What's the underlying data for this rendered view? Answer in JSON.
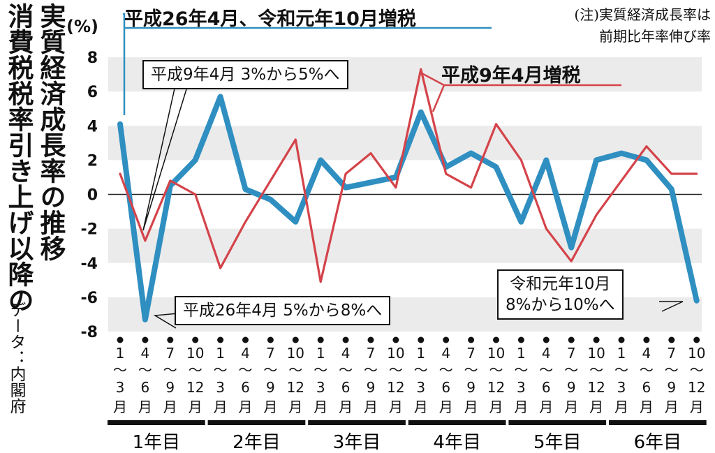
{
  "title_col1": "消費税税率引き上げ以降の",
  "title_col2": "実質経済成長率の推移",
  "source": "データ：内閣府",
  "unit": "(%)",
  "note_line1": "(注)実質経済成長率は",
  "note_line2": "前期比年率伸び率",
  "annotations": {
    "blue_header": "平成26年4月、令和元年10月増税",
    "h9_box": "平成9年4月 3%から5%へ",
    "red_label": "平成9年4月増税",
    "h26_box": "平成26年4月 5%から8%へ",
    "r1_box_line1": "令和元年10月",
    "r1_box_line2": "8%から10%へ"
  },
  "chart_data": {
    "type": "line",
    "ylim": [
      -8,
      8
    ],
    "yticks": [
      "8",
      "6",
      "4",
      "2",
      "0",
      "-2",
      "-4",
      "-6",
      "-8"
    ],
    "quarter_labels": [
      [
        "1",
        "〜",
        "3",
        "月"
      ],
      [
        "4",
        "〜",
        "6",
        "月"
      ],
      [
        "7",
        "〜",
        "9",
        "月"
      ],
      [
        "10",
        "〜",
        "12",
        "月"
      ]
    ],
    "years": [
      "1年目",
      "2年目",
      "3年目",
      "4年目",
      "5年目",
      "6年目"
    ],
    "series": [
      {
        "color": "#2f8fc1",
        "values": [
          4.1,
          -7.3,
          0.5,
          2.0,
          5.7,
          0.3,
          -0.3,
          -1.6,
          2.0,
          0.4,
          0.7,
          1.0,
          4.8,
          1.6,
          2.4,
          1.6,
          -1.6,
          2.0,
          -3.1,
          2.0,
          2.4,
          2.0,
          0.3,
          -6.2
        ]
      },
      {
        "color": "#d4434a",
        "values": [
          1.2,
          -2.7,
          0.8,
          0.0,
          -4.3,
          -1.6,
          0.8,
          3.2,
          -5.1,
          1.2,
          2.4,
          0.4,
          7.3,
          1.2,
          0.4,
          4.1,
          2.0,
          -2.0,
          -3.9,
          -1.2,
          0.8,
          2.8,
          1.2,
          1.2
        ]
      }
    ]
  }
}
